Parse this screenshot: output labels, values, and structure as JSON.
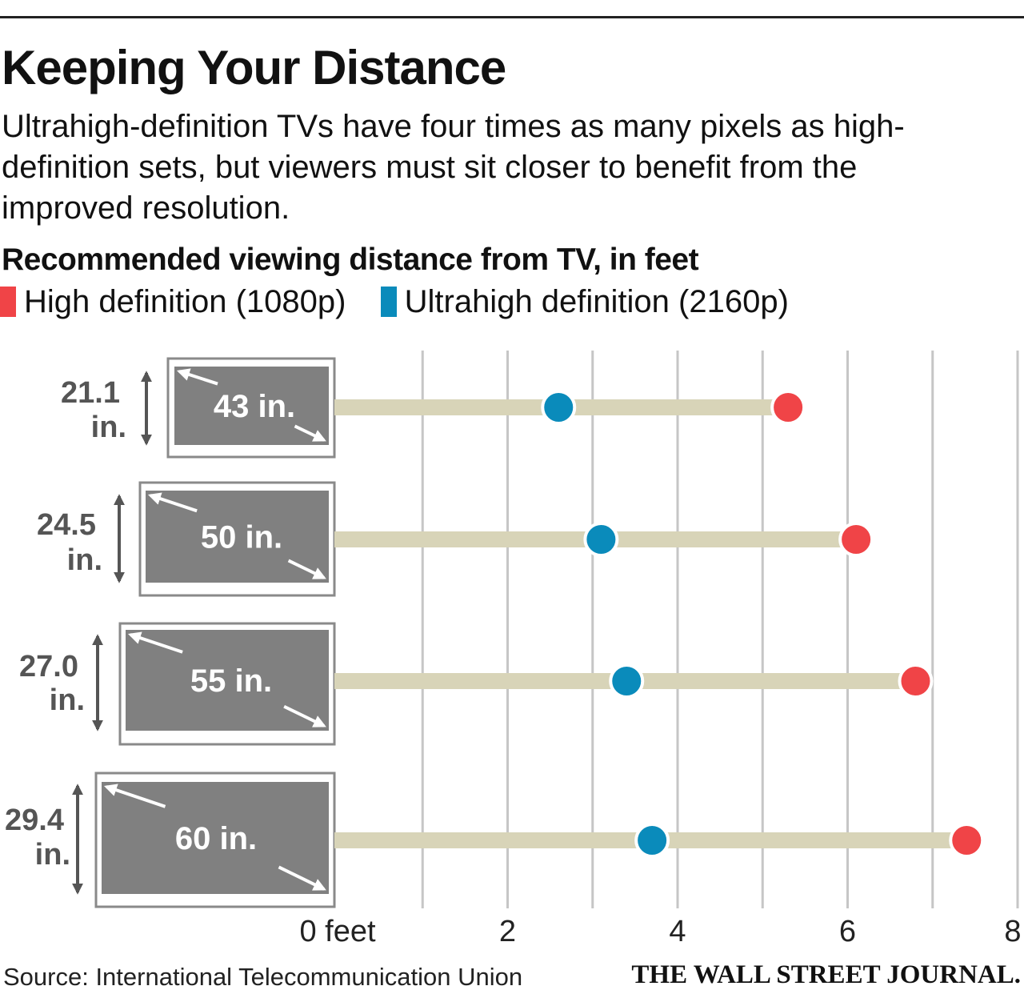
{
  "header": {
    "title": "Keeping Your Distance",
    "subtitle": "Ultrahigh-definition TVs have four times as many pixels as high-definition sets, but viewers must sit closer to benefit from the improved resolution."
  },
  "colors": {
    "hd": "#f04447",
    "uhd": "#0a8bbb",
    "bar": "#d8d4b8",
    "grid": "#c6c6c6",
    "tv": "#808080"
  },
  "chart_data": {
    "type": "dot-range",
    "title": "Recommended viewing distance from TV, in feet",
    "legend": [
      {
        "name": "High definition (1080p)",
        "color": "#f04447"
      },
      {
        "name": "Ultrahigh definition (2160p)",
        "color": "#0a8bbb"
      }
    ],
    "xlim": [
      0,
      8
    ],
    "x_ticks": [
      "0 feet",
      "2",
      "4",
      "6",
      "8"
    ],
    "x_tick_values": [
      0,
      2,
      4,
      6,
      8
    ],
    "categories": [
      {
        "tv_size": "43 in.",
        "height": "21.1",
        "height_unit": "in.",
        "hd": 5.3,
        "uhd": 2.6
      },
      {
        "tv_size": "50 in.",
        "height": "24.5",
        "height_unit": "in.",
        "hd": 6.1,
        "uhd": 3.1
      },
      {
        "tv_size": "55 in.",
        "height": "27.0",
        "height_unit": "in.",
        "hd": 6.8,
        "uhd": 3.4
      },
      {
        "tv_size": "60 in.",
        "height": "29.4",
        "height_unit": "in.",
        "hd": 7.4,
        "uhd": 3.7
      }
    ]
  },
  "footer": {
    "source": "Source: International Telecommunication Union",
    "publisher": "THE WALL STREET JOURNAL."
  }
}
